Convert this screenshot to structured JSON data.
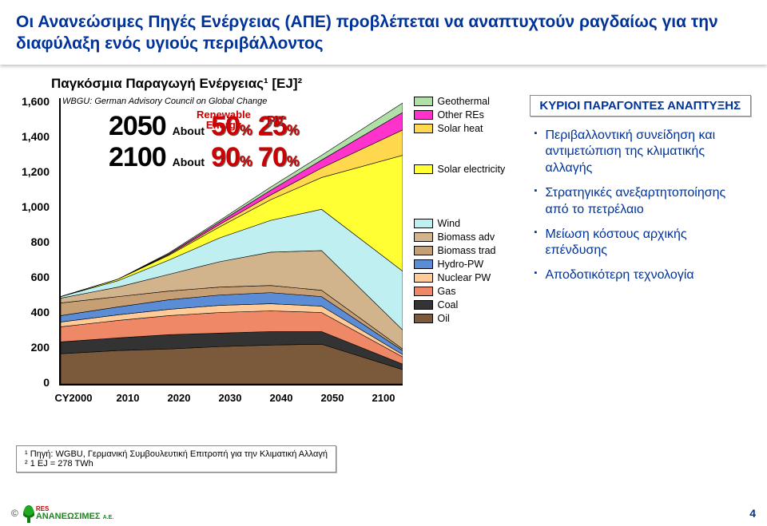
{
  "title": "Οι Ανανεώσιμες Πηγές Ενέργειας (ΑΠΕ) προβλέπεται να αναπτυχτούν ραγδαίως για την διαφύλαξη ενός υγιούς  περιβάλλοντος",
  "subtitle": "Παγκόσμια Παραγωγή Ενέργειας¹ [EJ]²",
  "wbgu_note": "WBGU: German Advisory Council on Global Change",
  "headline": {
    "renewable_label_l1": "Renewable",
    "renewable_label_l2": "Energy",
    "pv_label": "PV",
    "rows": [
      {
        "year": "2050",
        "about": "About",
        "re_pct": "50",
        "pv_pct": "25"
      },
      {
        "year": "2100",
        "about": "About",
        "re_pct": "90",
        "pv_pct": "70"
      }
    ],
    "pct_sign": "%"
  },
  "chart": {
    "type": "area",
    "background_color": "#ffffff",
    "ylim": [
      0,
      1600
    ],
    "y_ticks": [
      "0",
      "200",
      "400",
      "600",
      "800",
      "1,000",
      "1,200",
      "1,400",
      "1,600"
    ],
    "y_tick_positions": [
      360,
      316,
      272,
      228,
      184,
      140,
      96,
      52,
      8
    ],
    "x_ticks": [
      "CY2000",
      "2010",
      "2020",
      "2030",
      "2040",
      "2050",
      "2100"
    ],
    "x_tick_widths": [
      72,
      64,
      64,
      64,
      64,
      64,
      64
    ],
    "series": [
      {
        "name": "Geothermal",
        "color": "#b0e0a8"
      },
      {
        "name": "Other REs",
        "color": "#ff33cc"
      },
      {
        "name": "Solar heat",
        "color": "#ffd84d"
      },
      {
        "name": "Solar electricity",
        "color": "#ffff33"
      },
      {
        "name": "Wind",
        "color": "#bfeff0"
      },
      {
        "name": "Biomass adv",
        "color": "#d2b48c"
      },
      {
        "name": "Biomass trad",
        "color": "#c6a074"
      },
      {
        "name": "Hydro-PW",
        "color": "#5b8dd6"
      },
      {
        "name": "Nuclear PW",
        "color": "#ffcc99"
      },
      {
        "name": "Gas",
        "color": "#ee8866"
      },
      {
        "name": "Coal",
        "color": "#333333"
      },
      {
        "name": "Oil",
        "color": "#7a5a3a"
      }
    ],
    "legend_spacers_before": {
      "Solar electricity": 2,
      "Wind": 3
    },
    "stacks_top_y": {
      "comment": "y-coord (0-360, 0=top) of TOP of each layer at x-points 0..6; drawn bottom-up Oil->Geothermal",
      "x_pts": [
        0,
        72,
        136,
        200,
        264,
        328,
        430
      ],
      "layers_top": {
        "Oil": [
          322,
          318,
          316,
          313,
          311,
          310,
          342
        ],
        "Coal": [
          307,
          302,
          298,
          296,
          294,
          294,
          335
        ],
        "Gas": [
          288,
          280,
          274,
          270,
          268,
          270,
          326
        ],
        "Nuclear PW": [
          282,
          273,
          266,
          261,
          259,
          262,
          323
        ],
        "Hydro-PW": [
          274,
          263,
          254,
          248,
          245,
          250,
          318
        ],
        "Biomass trad": [
          258,
          250,
          243,
          238,
          236,
          242,
          316
        ],
        "Biomass adv": [
          252,
          238,
          222,
          206,
          194,
          192,
          292
        ],
        "Wind": [
          250,
          230,
          204,
          176,
          154,
          140,
          218
        ],
        "Solar electricity": [
          250,
          228,
          198,
          162,
          128,
          100,
          72
        ],
        "Solar heat": [
          250,
          228,
          197,
          159,
          122,
          88,
          40
        ],
        "Other REs": [
          250,
          228,
          196,
          156,
          116,
          78,
          18
        ],
        "Geothermal": [
          250,
          228,
          195,
          154,
          112,
          72,
          6
        ]
      }
    }
  },
  "factors": {
    "title": "ΚΥΡΙΟΙ ΠΑΡΑΓΟΝΤΕΣ ΑΝΑΠΤΥΞΗΣ",
    "items": [
      "Περιβαλλοντική συνείδηση και αντιμετώπιση της κλιματικής αλλαγής",
      "Στρατηγικές ανεξαρτητοποίησης από το πετρέλαιο",
      "Μείωση κόστους αρχικής επένδυσης",
      "Αποδοτικότερη τεχνολογία"
    ]
  },
  "footnote": {
    "l1": "¹ Πηγή: WGBU, Γερμανική Συμβουλευτική Επιτροπή για την Κλιματική Αλλαγή",
    "l2": "² 1 EJ = 278 TWh"
  },
  "footer": {
    "copyright": "©",
    "page": "4"
  },
  "colors": {
    "title": "#003399",
    "accent_red": "#cc0000"
  }
}
